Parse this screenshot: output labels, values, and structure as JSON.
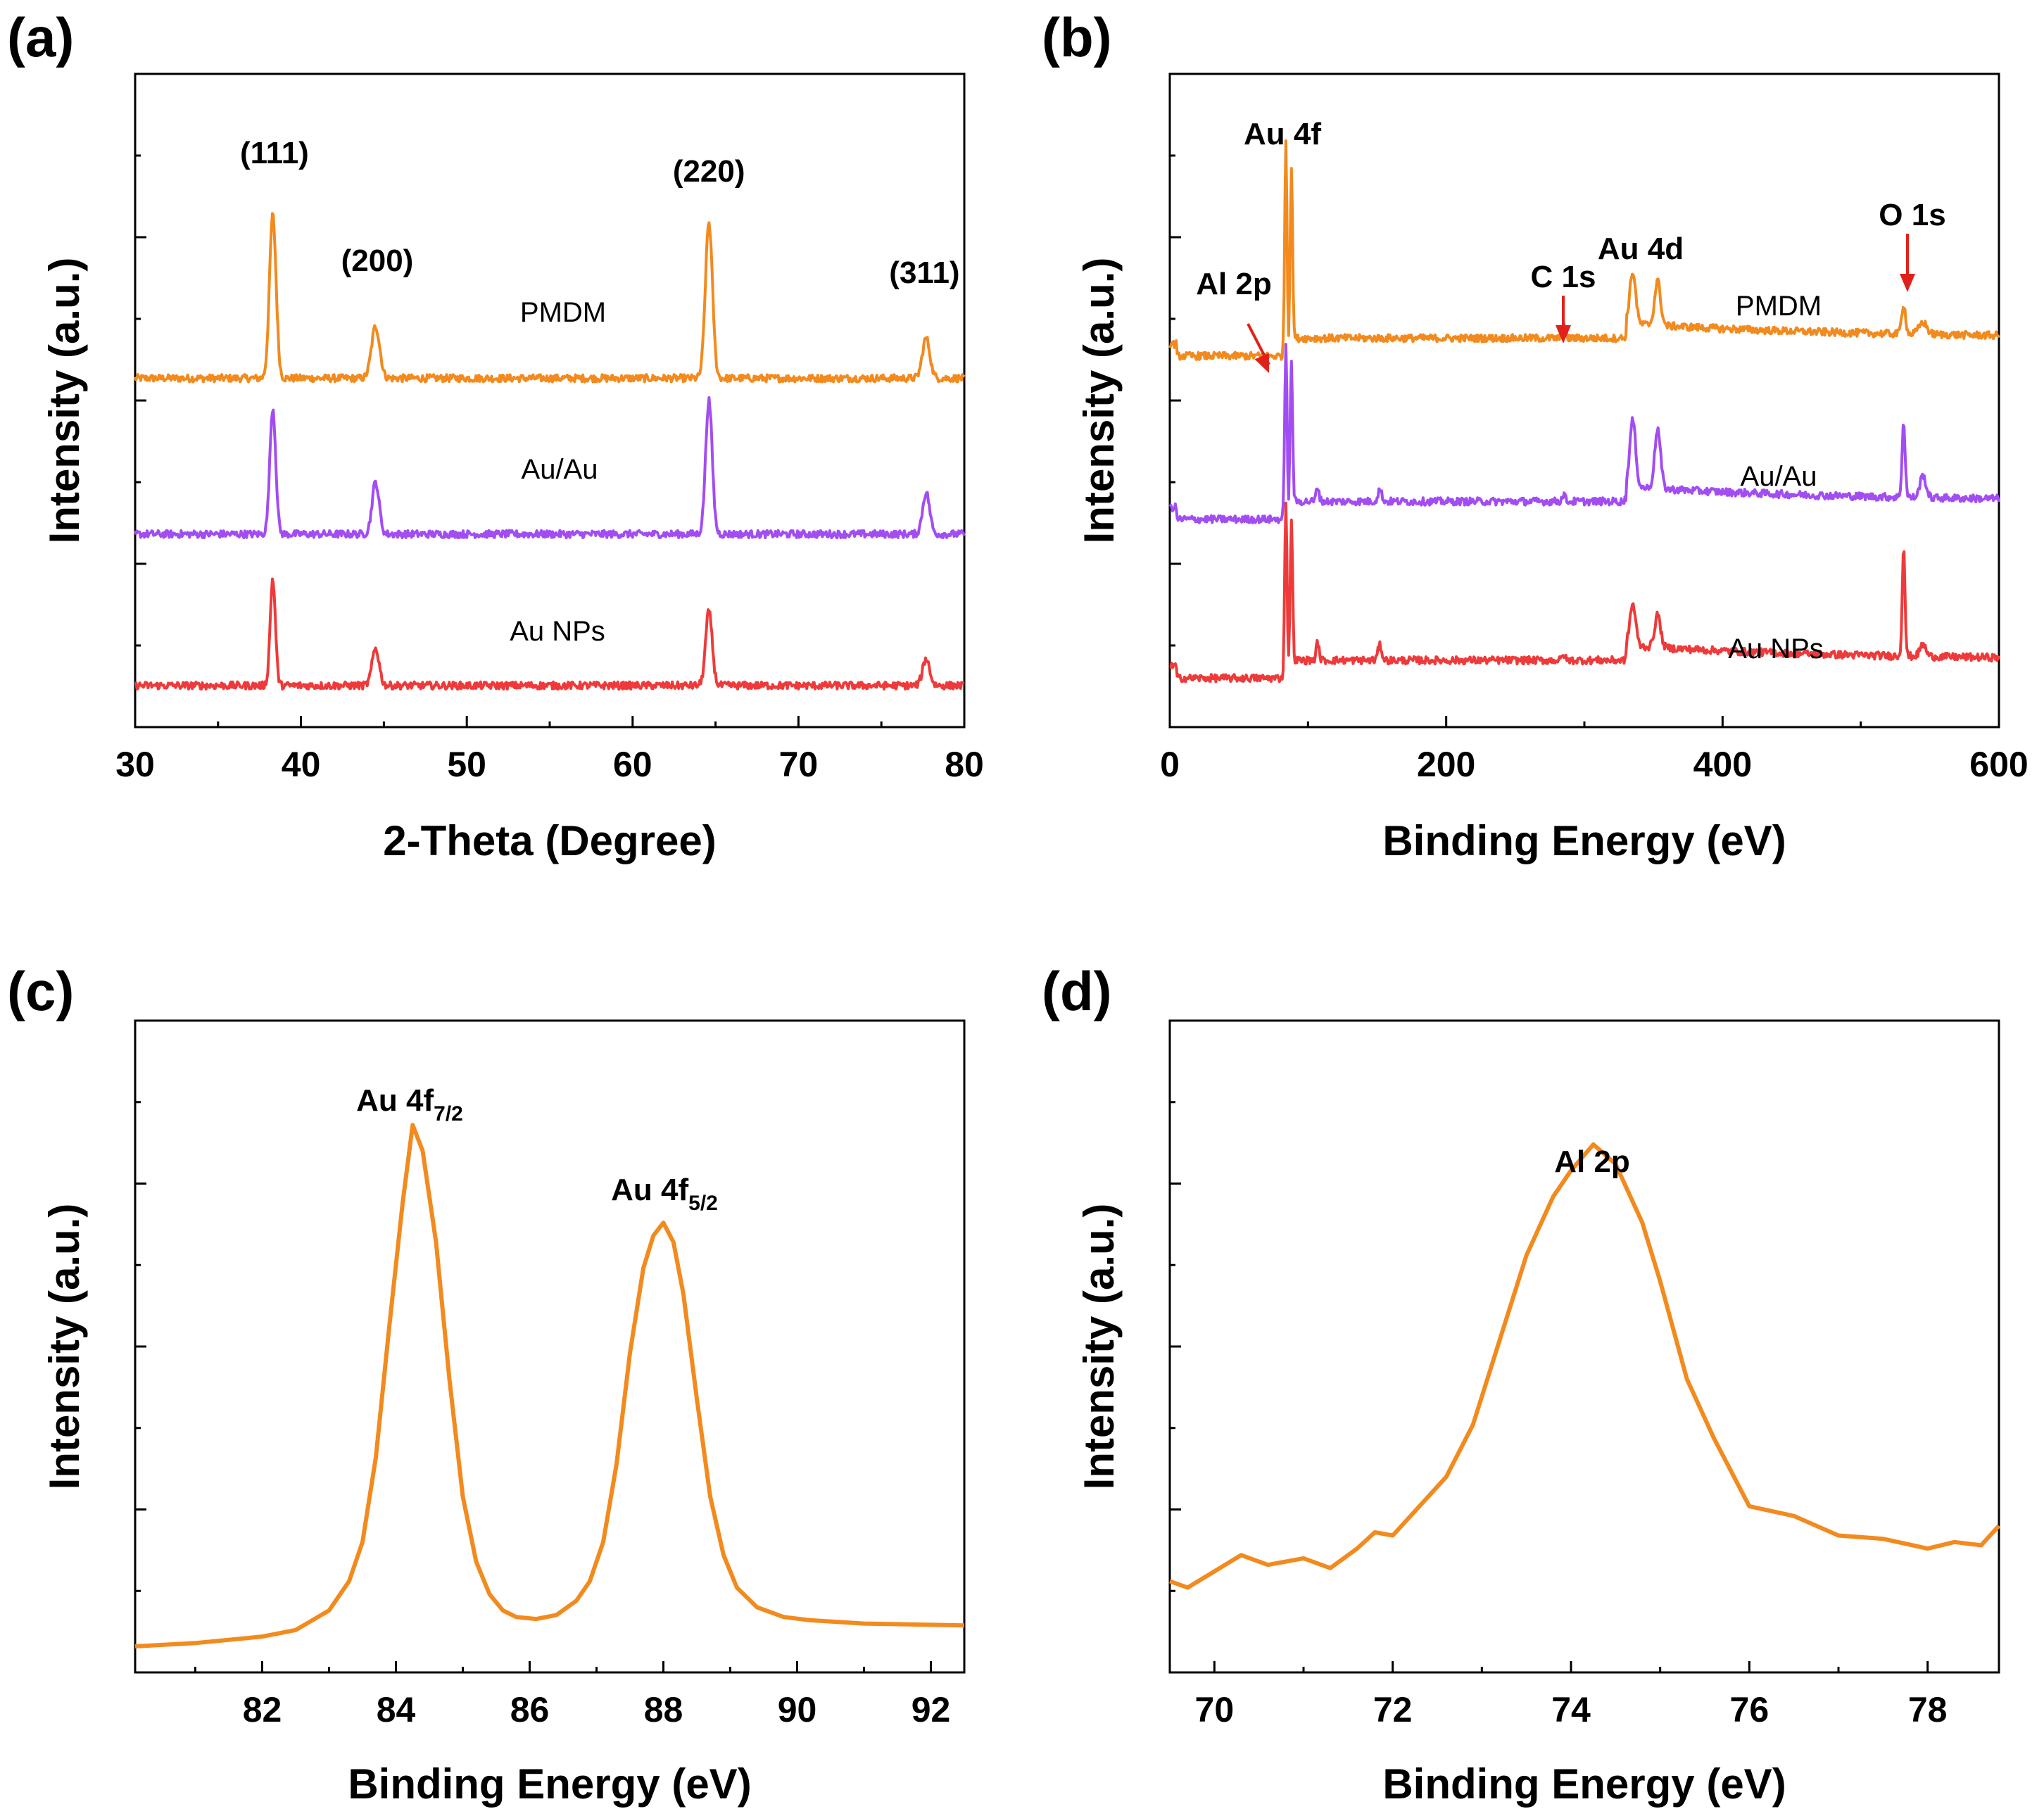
{
  "colors": {
    "orange": "#F28A1E",
    "purple": "#A24DF2",
    "red": "#EE3A3A",
    "arrow": "#E0201A"
  },
  "chart_data": [
    {
      "id": "a",
      "panel_label": "(a)",
      "type": "line",
      "xlabel": "2-Theta (Degree)",
      "ylabel": "Intensity (a.u.)",
      "xlim": [
        30,
        80
      ],
      "ylim": [
        0,
        4.4
      ],
      "x_ticks": [
        30,
        40,
        50,
        60,
        70,
        80
      ],
      "peak_labels": [
        {
          "text": "(111)",
          "x": 38.4
        },
        {
          "text": "(200)",
          "x": 44.6
        },
        {
          "text": "(220)",
          "x": 64.6
        },
        {
          "text": "(311)",
          "x": 77.6
        }
      ],
      "series": [
        {
          "name": "PMDM",
          "color": "orange",
          "baseline": 2.35,
          "peaks": [
            [
              38.3,
              1.1,
              0.28
            ],
            [
              44.5,
              0.35,
              0.35
            ],
            [
              64.6,
              1.05,
              0.3
            ],
            [
              77.7,
              0.27,
              0.32
            ]
          ]
        },
        {
          "name": "Au/Au",
          "color": "purple",
          "baseline": 1.3,
          "peaks": [
            [
              38.3,
              0.85,
              0.25
            ],
            [
              44.5,
              0.35,
              0.3
            ],
            [
              64.6,
              0.9,
              0.28
            ],
            [
              77.7,
              0.28,
              0.3
            ]
          ]
        },
        {
          "name": "Au NPs",
          "color": "red",
          "baseline": 0.28,
          "peaks": [
            [
              38.3,
              0.72,
              0.22
            ],
            [
              44.5,
              0.25,
              0.3
            ],
            [
              64.6,
              0.5,
              0.28
            ],
            [
              77.7,
              0.18,
              0.3
            ]
          ]
        }
      ]
    },
    {
      "id": "b",
      "panel_label": "(b)",
      "type": "line",
      "xlabel": "Binding Energy (eV)",
      "ylabel": "Intensity (a.u.)",
      "xlim": [
        0,
        600
      ],
      "ylim": [
        0,
        4.4
      ],
      "x_ticks": [
        0,
        200,
        400,
        600
      ],
      "peak_labels": [
        {
          "text": "Au 4f",
          "x": 84
        },
        {
          "text": "Au 4d",
          "x": 345
        },
        {
          "text": "C 1s",
          "x": 285
        },
        {
          "text": "O 1s",
          "x": 531
        },
        {
          "text": "Al 2p",
          "x": 74
        }
      ],
      "arrows": [
        {
          "label": "Al 2p",
          "x": 74
        },
        {
          "label": "C 1s",
          "x": 285
        },
        {
          "label": "O 1s",
          "x": 531
        }
      ],
      "series": [
        {
          "name": "PMDM",
          "color": "orange",
          "baseline": 2.5,
          "peaks": [
            [
              84,
              1.45,
              1.2
            ],
            [
              88,
              1.15,
              1.2
            ],
            [
              285,
              0.1,
              1.5
            ],
            [
              335,
              0.35,
              3
            ],
            [
              353,
              0.3,
              3
            ],
            [
              531,
              0.2,
              2
            ],
            [
              545,
              0.08,
              4
            ]
          ]
        },
        {
          "name": "Au/Au",
          "color": "purple",
          "baseline": 1.4,
          "peaks": [
            [
              84,
              1.2,
              1.2
            ],
            [
              88,
              0.95,
              1.2
            ],
            [
              107,
              0.1,
              1.5
            ],
            [
              152,
              0.08,
              2
            ],
            [
              285,
              0.05,
              1.5
            ],
            [
              335,
              0.45,
              3
            ],
            [
              353,
              0.4,
              3
            ],
            [
              531,
              0.5,
              1.6
            ],
            [
              545,
              0.15,
              3
            ]
          ]
        },
        {
          "name": "Au NPs",
          "color": "red",
          "baseline": 0.33,
          "peaks": [
            [
              84,
              1.2,
              1.2
            ],
            [
              88,
              0.95,
              1.2
            ],
            [
              107,
              0.12,
              1.5
            ],
            [
              152,
              0.1,
              2
            ],
            [
              285,
              0.04,
              1.5
            ],
            [
              335,
              0.28,
              3
            ],
            [
              353,
              0.22,
              3
            ],
            [
              531,
              0.75,
              1.4
            ],
            [
              545,
              0.08,
              3
            ]
          ]
        }
      ]
    },
    {
      "id": "c",
      "panel_label": "(c)",
      "type": "line",
      "xlabel": "Binding Energy (eV)",
      "ylabel": "Intensity (a.u.)",
      "xlim": [
        80.1,
        92.5
      ],
      "ylim": [
        0,
        1
      ],
      "x_ticks": [
        82,
        84,
        86,
        88,
        90,
        92
      ],
      "peak_labels": [
        {
          "text": "Au 4f",
          "sub": "7/2",
          "x": 84.25
        },
        {
          "text": "Au 4f",
          "sub": "5/2",
          "x": 88.0
        }
      ],
      "series": [
        {
          "name": "Au 4f",
          "color": "orange",
          "x": [
            80.1,
            81.0,
            82.0,
            82.5,
            83.0,
            83.3,
            83.5,
            83.7,
            83.9,
            84.1,
            84.25,
            84.4,
            84.6,
            84.8,
            85.0,
            85.2,
            85.4,
            85.6,
            85.8,
            86.1,
            86.4,
            86.7,
            86.9,
            87.1,
            87.3,
            87.5,
            87.7,
            87.85,
            88.0,
            88.15,
            88.3,
            88.5,
            88.7,
            88.9,
            89.1,
            89.4,
            89.8,
            90.2,
            91.0,
            92.5
          ],
          "y": [
            0.04,
            0.045,
            0.055,
            0.065,
            0.095,
            0.14,
            0.2,
            0.33,
            0.53,
            0.72,
            0.84,
            0.8,
            0.66,
            0.45,
            0.27,
            0.17,
            0.12,
            0.095,
            0.085,
            0.082,
            0.088,
            0.11,
            0.14,
            0.2,
            0.32,
            0.49,
            0.62,
            0.67,
            0.69,
            0.66,
            0.58,
            0.42,
            0.27,
            0.18,
            0.13,
            0.1,
            0.085,
            0.08,
            0.075,
            0.072
          ]
        }
      ]
    },
    {
      "id": "d",
      "panel_label": "(d)",
      "type": "line",
      "xlabel": "Binding Energy (eV)",
      "ylabel": "Intensity (a.u.)",
      "xlim": [
        69.5,
        78.8
      ],
      "ylim": [
        0,
        1
      ],
      "x_ticks": [
        70,
        72,
        74,
        76,
        78
      ],
      "peak_labels": [
        {
          "text": "Al 2p",
          "x": 74.25
        }
      ],
      "series": [
        {
          "name": "Al 2p",
          "color": "orange",
          "x": [
            69.5,
            69.7,
            70.0,
            70.3,
            70.6,
            71.0,
            71.3,
            71.6,
            71.8,
            72.0,
            72.3,
            72.6,
            72.9,
            73.2,
            73.5,
            73.8,
            74.0,
            74.25,
            74.5,
            74.8,
            75.0,
            75.3,
            75.6,
            76.0,
            76.5,
            77.0,
            77.5,
            78.0,
            78.3,
            78.6,
            78.8
          ],
          "y": [
            0.14,
            0.13,
            0.155,
            0.18,
            0.165,
            0.175,
            0.16,
            0.19,
            0.215,
            0.21,
            0.255,
            0.3,
            0.38,
            0.51,
            0.64,
            0.73,
            0.77,
            0.81,
            0.78,
            0.69,
            0.6,
            0.45,
            0.36,
            0.255,
            0.24,
            0.21,
            0.205,
            0.19,
            0.2,
            0.195,
            0.225
          ]
        }
      ]
    }
  ]
}
